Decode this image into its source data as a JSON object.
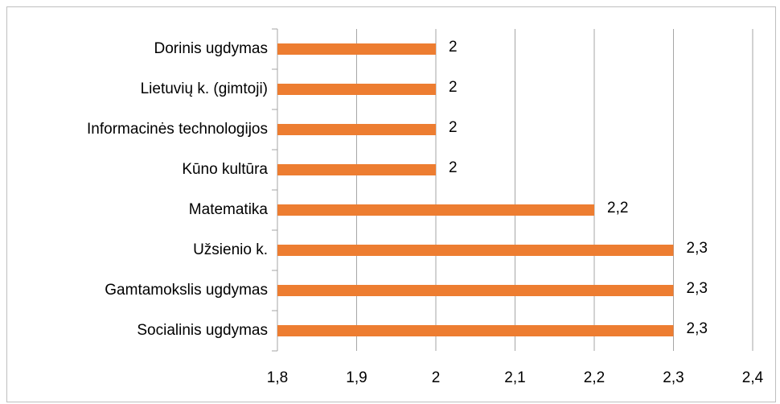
{
  "chart_data": {
    "type": "bar",
    "orientation": "horizontal",
    "categories": [
      "Dorinis ugdymas",
      "Lietuvių k. (gimtoji)",
      "Informacinės technologijos",
      "Kūno kultūra",
      "Matematika",
      "Užsienio k.",
      "Gamtamokslis ugdymas",
      "Socialinis ugdymas"
    ],
    "values": [
      2,
      2,
      2,
      2,
      2.2,
      2.3,
      2.3,
      2.3
    ],
    "value_labels": [
      "2",
      "2",
      "2",
      "2",
      "2,2",
      "2,3",
      "2,3",
      "2,3"
    ],
    "color": "#ed7d31",
    "xlim": [
      1.8,
      2.4
    ],
    "xticks": [
      {
        "value": 1.8,
        "label": "1,8"
      },
      {
        "value": 1.9,
        "label": "1,9"
      },
      2,
      {
        "value": 2.1,
        "label": "2,1"
      },
      {
        "value": 2.2,
        "label": "2,2"
      },
      {
        "value": 2.3,
        "label": "2,3"
      },
      {
        "value": 2.4,
        "label": "2,4"
      }
    ],
    "grid": true
  }
}
